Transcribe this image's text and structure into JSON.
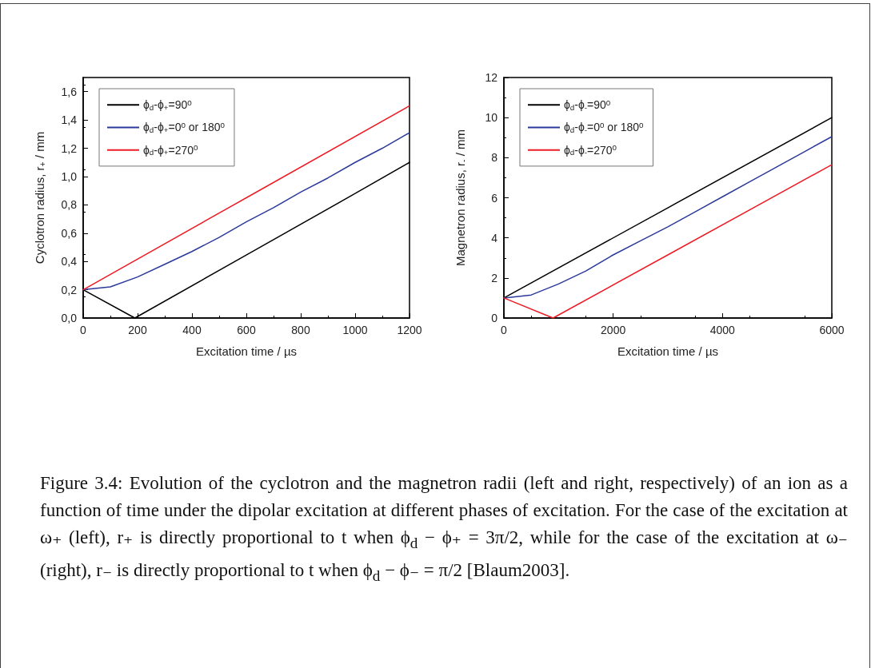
{
  "chart_data": [
    {
      "type": "line",
      "xlabel": "Excitation time / µs",
      "ylabel": "Cyclotron radius, r$_{+}$ / mm",
      "xlim": [
        0,
        1200
      ],
      "xticks": [
        0,
        200,
        400,
        600,
        800,
        1000,
        1200
      ],
      "ylim": [
        0,
        1.7
      ],
      "yticks": [
        {
          "value": 0,
          "label": "0,0"
        },
        {
          "value": 0.2,
          "label": "0,2"
        },
        {
          "value": 0.4,
          "label": "0,4"
        },
        {
          "value": 0.6,
          "label": "0,6"
        },
        {
          "value": 0.8,
          "label": "0,8"
        },
        {
          "value": 1.0,
          "label": "1,0"
        },
        {
          "value": 1.2,
          "label": "1,2"
        },
        {
          "value": 1.4,
          "label": "1,4"
        },
        {
          "value": 1.6,
          "label": "1,6"
        }
      ],
      "grid": false,
      "legend": "top left",
      "marker": "none",
      "line_style": "solid",
      "series": [
        {
          "name": "ϕ$_{d}$-ϕ$_{+}$=90$^{0}$",
          "color": "#000000",
          "x": [
            0,
            190,
            600,
            1000,
            1200
          ],
          "values": [
            0.2,
            0.0,
            0.445,
            0.88,
            1.1
          ]
        },
        {
          "name": "ϕ$_{d}$-ϕ$_{+}$=0$^{0}$ or 180$^{0}$",
          "color": "#2b3a9a",
          "x": [
            0,
            100,
            200,
            300,
            400,
            500,
            600,
            700,
            800,
            900,
            1000,
            1100,
            1200
          ],
          "values": [
            0.2,
            0.22,
            0.29,
            0.38,
            0.47,
            0.57,
            0.68,
            0.78,
            0.89,
            0.99,
            1.1,
            1.2,
            1.31
          ]
        },
        {
          "name": "ϕ$_{d}$-ϕ$_{+}$=270$^{0}$",
          "color": "#ee1c25",
          "x": [
            0,
            600,
            1200
          ],
          "values": [
            0.2,
            0.85,
            1.5
          ]
        }
      ],
      "annotations": [
        "Figure 3.4: Evolution of the cyclotron and the magnetron radii (left and right, respectively) of an ion as a function of time under the dipolar excitation at different phases of excitation. For the case of the excitation at ω₊ (left), r₊ is directly proportional to t when ϕ$_{d}$ − ϕ₊ = 3π/2, while for the case of the excitation at ω₋ (right), r₋ is directly proportional to t when ϕ$_{d}$ − ϕ₋ = π/2 [Blaum2003]."
      ]
    },
    {
      "type": "line",
      "xlabel": "Excitation time / µs",
      "ylabel": "Magnetron radius, r$_{-}$ / mm",
      "xlim": [
        0,
        6000
      ],
      "xticks": [
        0,
        2000,
        4000,
        6000
      ],
      "ylim": [
        0,
        12
      ],
      "yticks": [
        0,
        2,
        4,
        6,
        8,
        10,
        12
      ],
      "grid": false,
      "legend": "top left",
      "marker": "none",
      "line_style": "solid",
      "series": [
        {
          "name": "ϕ$_{d}$-ϕ$_{-}$=90$^{0}$",
          "color": "#000000",
          "x": [
            0,
            3000,
            6000
          ],
          "values": [
            1,
            5.5,
            10
          ]
        },
        {
          "name": "ϕ$_{d}$-ϕ$_{-}$=0$^{0}$ or 180$^{0}$",
          "color": "#2b3a9a",
          "x": [
            0,
            500,
            1000,
            1500,
            2000,
            2500,
            3000,
            3500,
            4000,
            4500,
            5000,
            5500,
            6000
          ],
          "values": [
            1,
            1.15,
            1.7,
            2.35,
            3.15,
            3.85,
            4.55,
            5.3,
            6.05,
            6.8,
            7.55,
            8.3,
            9.05
          ]
        },
        {
          "name": "ϕ$_{d}$-ϕ$_{-}$=270$^{0}$",
          "color": "#ee1c25",
          "x": [
            0,
            900,
            3000,
            6000
          ],
          "values": [
            1,
            0,
            3.15,
            7.65
          ]
        }
      ]
    }
  ]
}
